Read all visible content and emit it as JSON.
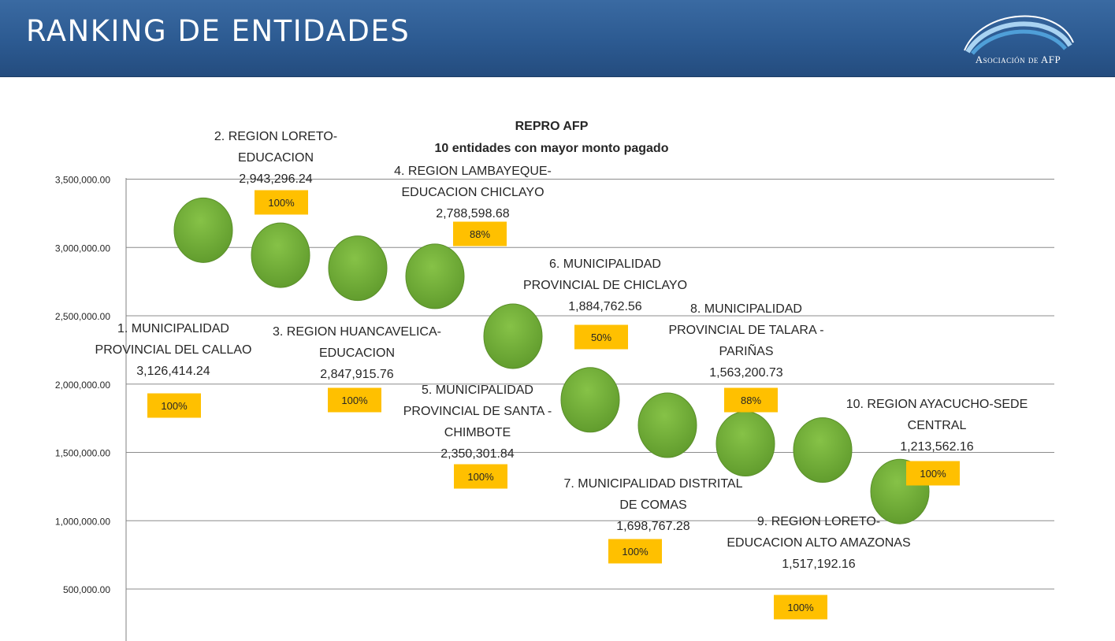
{
  "header": {
    "title": "RANKING DE ENTIDADES",
    "logo_text": "Asociación de AFP",
    "logo_icon": "afp-arc-logo-icon"
  },
  "colors": {
    "banner": "#2c5a91",
    "bubble": "#7cb342",
    "badge": "#ffc000",
    "text": "#262626"
  },
  "chart_data": {
    "type": "scatter",
    "title": "REPRO AFP",
    "subtitle": "10 entidades con mayor monto pagado",
    "xlabel": "",
    "ylabel": "",
    "ylim": [
      0,
      3500000
    ],
    "y_ticks": [
      "500,000.00",
      "1,000,000.00",
      "1,500,000.00",
      "2,000,000.00",
      "2,500,000.00",
      "3,000,000.00",
      "3,500,000.00"
    ],
    "grid": true,
    "legend": "none",
    "points": [
      {
        "rank": 1,
        "value": 3126414.24,
        "label_lines": [
          "1. MUNICIPALIDAD",
          "PROVINCIAL DEL CALLAO",
          "3,126,414.24"
        ],
        "badge": "100%"
      },
      {
        "rank": 2,
        "value": 2943296.24,
        "label_lines": [
          "2. REGION LORETO-",
          "EDUCACION",
          "2,943,296.24"
        ],
        "badge": "100%"
      },
      {
        "rank": 3,
        "value": 2847915.76,
        "label_lines": [
          "3. REGION HUANCAVELICA-",
          "EDUCACION",
          "2,847,915.76"
        ],
        "badge": "100%"
      },
      {
        "rank": 4,
        "value": 2788598.68,
        "label_lines": [
          "4. REGION LAMBAYEQUE-",
          "EDUCACION CHICLAYO",
          "2,788,598.68"
        ],
        "badge": "88%"
      },
      {
        "rank": 5,
        "value": 2350301.84,
        "label_lines": [
          "5. MUNICIPALIDAD",
          "PROVINCIAL DE SANTA -",
          "CHIMBOTE",
          "2,350,301.84"
        ],
        "badge": "100%"
      },
      {
        "rank": 6,
        "value": 1884762.56,
        "label_lines": [
          "6. MUNICIPALIDAD",
          "PROVINCIAL DE CHICLAYO",
          "1,884,762.56"
        ],
        "badge": "50%"
      },
      {
        "rank": 7,
        "value": 1698767.28,
        "label_lines": [
          "7. MUNICIPALIDAD DISTRITAL",
          "DE COMAS",
          "1,698,767.28"
        ],
        "badge": "100%"
      },
      {
        "rank": 8,
        "value": 1563200.73,
        "label_lines": [
          "8. MUNICIPALIDAD",
          "PROVINCIAL DE TALARA -",
          "PARIÑAS",
          "1,563,200.73"
        ],
        "badge": "88%"
      },
      {
        "rank": 9,
        "value": 1517192.16,
        "label_lines": [
          "9. REGION LORETO-",
          "EDUCACION ALTO AMAZONAS",
          "1,517,192.16"
        ],
        "badge": "100%"
      },
      {
        "rank": 10,
        "value": 1213562.16,
        "label_lines": [
          "10. REGION AYACUCHO-SEDE",
          "CENTRAL",
          "1,213,562.16"
        ],
        "badge": "100%"
      }
    ]
  }
}
